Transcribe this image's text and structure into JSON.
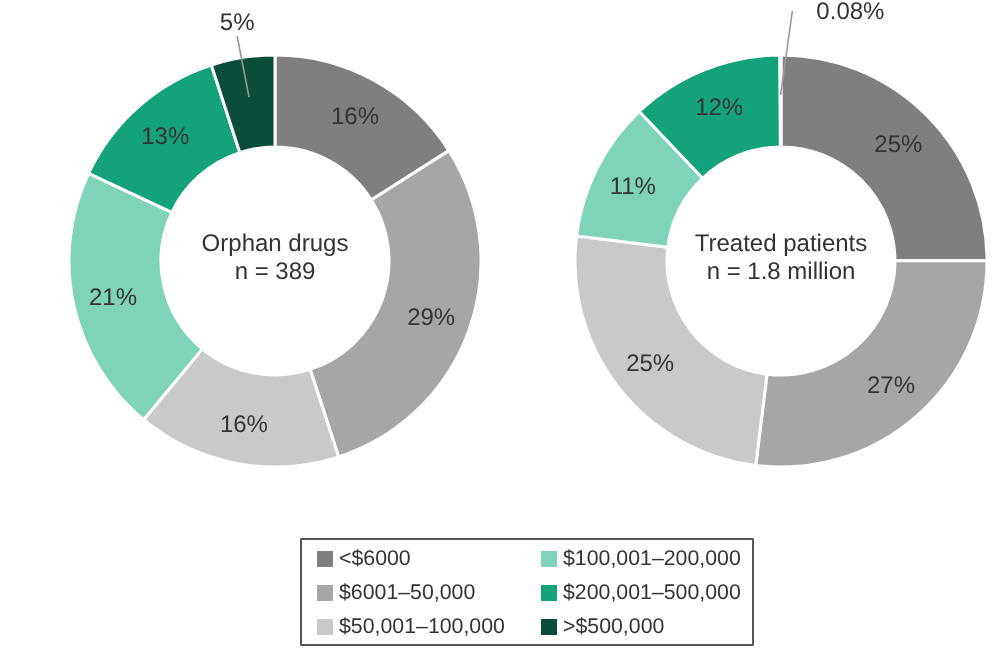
{
  "chart_data": [
    {
      "type": "donut",
      "title": "Orphan drugs",
      "subtitle": "n = 389",
      "categories": [
        "<$6000",
        "$6001–50,000",
        "$50,001–100,000",
        "$100,001–200,000",
        "$200,001–500,000",
        ">$500,000"
      ],
      "values": [
        16,
        29,
        16,
        21,
        13,
        5
      ],
      "value_labels": [
        "16%",
        "29%",
        "16%",
        "21%",
        "13%",
        "5%"
      ],
      "colors": [
        "#7f7f7f",
        "#a6a6a6",
        "#c9c9c9",
        "#7fd3b8",
        "#14a27a",
        "#0b4d3b"
      ],
      "legend": "bottom"
    },
    {
      "type": "donut",
      "title": "Treated patients",
      "subtitle": "n = 1.8 million",
      "categories": [
        null,
        null,
        null,
        null,
        null,
        null
      ],
      "values": [
        25,
        27,
        25,
        11,
        12,
        0.08
      ],
      "value_labels": [
        "25%",
        "27%",
        "25%",
        "11%",
        "12%",
        "0.08%"
      ],
      "colors": [
        "#7f7f7f",
        "#a6a6a6",
        "#c9c9c9",
        "#7fd3b8",
        "#14a27a",
        "#0b4d3b"
      ]
    }
  ]
}
